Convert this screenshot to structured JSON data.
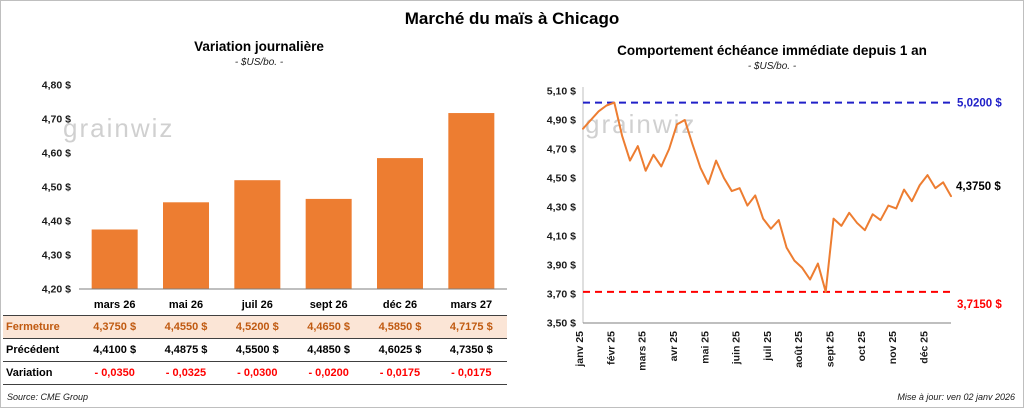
{
  "page": {
    "title": "Marché du maïs à Chicago",
    "source": "Source: CME Group",
    "updated": "Mise à jour: ven 02 janv 2026",
    "watermark": "grainwiz"
  },
  "left": {
    "title": "Variation journalière",
    "subtitle": "- $US/bo. -",
    "months": [
      "mars 26",
      "mai 26",
      "juil 26",
      "sept 26",
      "déc 26",
      "mars 27"
    ],
    "table": {
      "rows": [
        {
          "label": "Fermeture",
          "values": [
            "4,3750  $",
            "4,4550  $",
            "4,5200  $",
            "4,4650  $",
            "4,5850  $",
            "4,7175  $"
          ]
        },
        {
          "label": "Précédent",
          "values": [
            "4,4100  $",
            "4,4875  $",
            "4,5500  $",
            "4,4850  $",
            "4,6025  $",
            "4,7350  $"
          ]
        },
        {
          "label": "Variation",
          "values": [
            "- 0,0350",
            "- 0,0325",
            "- 0,0300",
            "- 0,0200",
            "- 0,0175",
            "- 0,0175"
          ]
        }
      ]
    }
  },
  "right": {
    "title": "Comportement échéance immédiate depuis 1 an",
    "subtitle": "- $US/bo. -"
  },
  "colors": {
    "accent_orange": "#ED7D31",
    "fermeture_bg": "#FBE5D6",
    "fermeture_text": "#C05A11",
    "negative_red": "#FF0000",
    "ref_high_blue": "#2020C8",
    "ref_low_red": "#FF0000"
  },
  "chart_data": [
    {
      "type": "bar",
      "title": "Variation journalière",
      "ylabel": "$US/bo.",
      "categories": [
        "mars 26",
        "mai 26",
        "juil 26",
        "sept 26",
        "déc 26",
        "mars 27"
      ],
      "values": [
        4.375,
        4.455,
        4.52,
        4.465,
        4.585,
        4.7175
      ],
      "ylim": [
        4.2,
        4.8
      ],
      "ytick_step": 0.1,
      "bar_color": "#ED7D31",
      "grid": false
    },
    {
      "type": "line",
      "title": "Comportement échéance immédiate depuis 1 an",
      "ylabel": "$US/bo.",
      "x_labels": [
        "janv 25",
        "févr 25",
        "mars 25",
        "avr 25",
        "mai 25",
        "juin 25",
        "juil 25",
        "août 25",
        "sept 25",
        "oct 25",
        "nov 25",
        "déc 25"
      ],
      "values": [
        4.84,
        4.9,
        4.96,
        5.0,
        5.02,
        4.79,
        4.62,
        4.72,
        4.55,
        4.66,
        4.58,
        4.7,
        4.87,
        4.9,
        4.73,
        4.57,
        4.46,
        4.62,
        4.5,
        4.41,
        4.43,
        4.31,
        4.38,
        4.22,
        4.15,
        4.21,
        4.02,
        3.93,
        3.88,
        3.8,
        3.91,
        3.715,
        4.22,
        4.17,
        4.26,
        4.19,
        4.14,
        4.25,
        4.21,
        4.31,
        4.29,
        4.42,
        4.34,
        4.45,
        4.52,
        4.43,
        4.47,
        4.375
      ],
      "ylim": [
        3.5,
        5.1
      ],
      "ytick_step": 0.2,
      "line_color": "#ED7D31",
      "ref_lines": [
        {
          "value": 5.02,
          "label": "5,0200 $",
          "color": "#2020C8"
        },
        {
          "value": 3.715,
          "label": "3,7150 $",
          "color": "#FF0000"
        }
      ],
      "last_value": 4.375,
      "last_label": "4,3750 $",
      "grid": false
    }
  ]
}
